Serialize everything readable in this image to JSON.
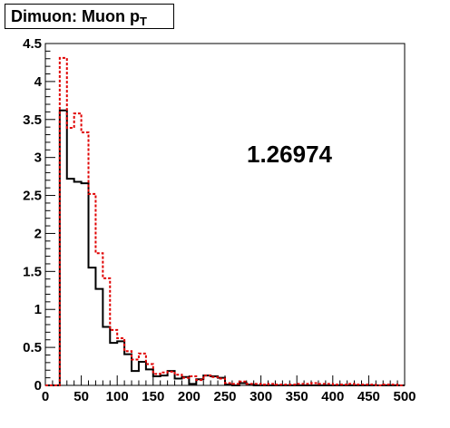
{
  "chart_data": {
    "type": "histogram",
    "title_main": "Dimuon: Muon p",
    "title_sub": "T",
    "xlabel": "",
    "ylabel": "",
    "xlim": [
      0,
      500
    ],
    "ylim": [
      0,
      4.5
    ],
    "bin_width": 10,
    "x_ticks": [
      "0",
      "50",
      "100",
      "150",
      "200",
      "250",
      "300",
      "350",
      "400",
      "450",
      "500"
    ],
    "y_ticks": [
      "0",
      "0.5",
      "1",
      "1.5",
      "2",
      "2.5",
      "3",
      "3.5",
      "4",
      "4.5"
    ],
    "annotation": "1.26974",
    "grid": false,
    "series": [
      {
        "color": "#000000",
        "style": "solid",
        "values": [
          0,
          0,
          3.62,
          2.72,
          2.68,
          2.66,
          1.55,
          1.27,
          0.77,
          0.56,
          0.58,
          0.41,
          0.19,
          0.31,
          0.21,
          0.12,
          0.13,
          0.19,
          0.09,
          0.11,
          0.02,
          0.08,
          0.13,
          0.12,
          0.1,
          0.01,
          0.0,
          0.03,
          0.01,
          0.0,
          0.0,
          0.0,
          0.0,
          0.0,
          0.0,
          0.0,
          0.0,
          0.0,
          0.0,
          0.0,
          0.0,
          0.0,
          0.0,
          0.0,
          0.0,
          0.0,
          0.0,
          0.0,
          0.0,
          0.0
        ]
      },
      {
        "color": "#e00000",
        "style": "dashed",
        "values": [
          0,
          0,
          4.31,
          3.39,
          3.58,
          3.33,
          2.52,
          1.74,
          1.41,
          0.73,
          0.62,
          0.45,
          0.34,
          0.42,
          0.28,
          0.15,
          0.17,
          0.18,
          0.14,
          0.1,
          0.12,
          0.07,
          0.13,
          0.11,
          0.09,
          0.03,
          0.02,
          0.05,
          0.02,
          0.02,
          0.01,
          0.02,
          0.01,
          0.01,
          0.01,
          0.02,
          0.02,
          0.03,
          0.02,
          0.02,
          0.01,
          0.01,
          0.02,
          0.01,
          0.01,
          0.01,
          0.0,
          0.01,
          0.01,
          0.0
        ]
      }
    ]
  }
}
